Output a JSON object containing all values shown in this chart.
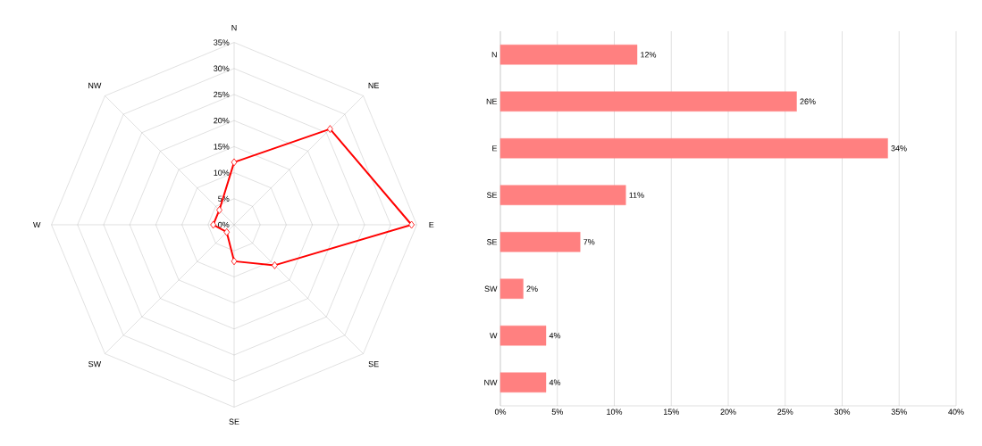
{
  "chart_data": [
    {
      "type": "radar",
      "categories": [
        "N",
        "NE",
        "E",
        "SE",
        "SE",
        "SW",
        "W",
        "NW"
      ],
      "series": [
        {
          "color": "#ff0000",
          "values": [
            12,
            26,
            34,
            11,
            7,
            2,
            4,
            4
          ]
        }
      ],
      "ylim": [
        0,
        35
      ],
      "yticks": [
        {
          "value": 0,
          "label": "0%"
        },
        {
          "value": 5,
          "label": "5%"
        },
        {
          "value": 10,
          "label": "10%"
        },
        {
          "value": 15,
          "label": "15%"
        },
        {
          "value": 20,
          "label": "20%"
        },
        {
          "value": 25,
          "label": "25%"
        },
        {
          "value": 30,
          "label": "30%"
        },
        {
          "value": 35,
          "label": "35%"
        }
      ],
      "marker": "diamond",
      "grid": true
    },
    {
      "type": "bar",
      "orientation": "horizontal",
      "categories": [
        "N",
        "NE",
        "E",
        "SE",
        "SE",
        "SW",
        "W",
        "NW"
      ],
      "values": [
        12,
        26,
        34,
        11,
        7,
        2,
        4,
        4
      ],
      "color": "#ff8080",
      "value_labels": [
        "12%",
        "26%",
        "34%",
        "11%",
        "7%",
        "2%",
        "4%",
        "4%"
      ],
      "xlim": [
        0,
        40
      ],
      "xticks": [
        {
          "value": 0,
          "label": "0%"
        },
        {
          "value": 5,
          "label": "5%"
        },
        {
          "value": 10,
          "label": "10%"
        },
        {
          "value": 15,
          "label": "15%"
        },
        {
          "value": 20,
          "label": "20%"
        },
        {
          "value": 25,
          "label": "25%"
        },
        {
          "value": 30,
          "label": "30%"
        },
        {
          "value": 35,
          "label": "35%"
        },
        {
          "value": 40,
          "label": "40%"
        }
      ],
      "grid": "x"
    }
  ]
}
